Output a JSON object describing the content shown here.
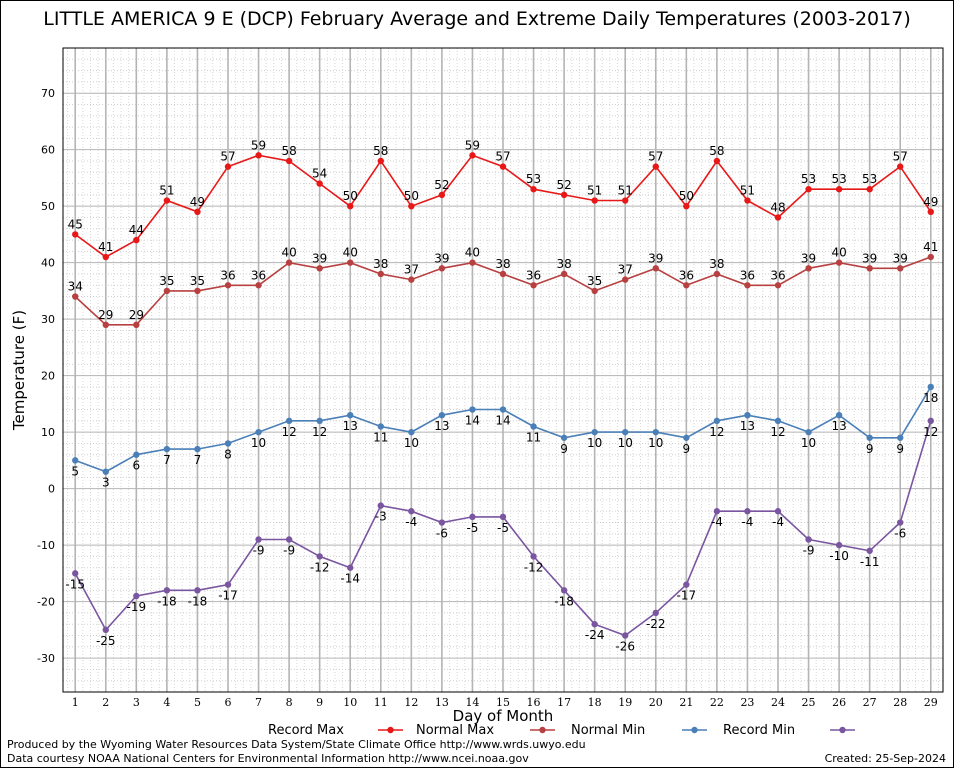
{
  "chart_data": {
    "type": "line",
    "title": "LITTLE AMERICA 9 E (DCP) February Average and Extreme Daily Temperatures (2003-2017)",
    "xlabel": "Day of Month",
    "ylabel": "Temperature (F)",
    "x": [
      1,
      2,
      3,
      4,
      5,
      6,
      7,
      8,
      9,
      10,
      11,
      12,
      13,
      14,
      15,
      16,
      17,
      18,
      19,
      20,
      21,
      22,
      23,
      24,
      25,
      26,
      27,
      28,
      29
    ],
    "xlim": [
      0.6,
      29.4
    ],
    "ylim": [
      -36,
      78
    ],
    "yticks": [
      -30,
      -20,
      -10,
      0,
      10,
      20,
      30,
      40,
      50,
      60,
      70
    ],
    "grid": true,
    "legend_position": "bottom",
    "series": [
      {
        "name": "Record Max",
        "color": "#e81818",
        "values": [
          45,
          41,
          44,
          51,
          49,
          57,
          59,
          58,
          54,
          50,
          58,
          50,
          52,
          59,
          57,
          53,
          52,
          51,
          51,
          57,
          50,
          58,
          51,
          48,
          53,
          53,
          53,
          57,
          49
        ]
      },
      {
        "name": "Normal Max",
        "color": "#b84040",
        "values": [
          34,
          29,
          29,
          35,
          35,
          36,
          36,
          40,
          39,
          40,
          38,
          37,
          39,
          40,
          38,
          36,
          38,
          35,
          37,
          39,
          36,
          38,
          36,
          36,
          39,
          40,
          39,
          39,
          41
        ]
      },
      {
        "name": "Normal Min",
        "color": "#4a7fb8",
        "values": [
          5,
          3,
          6,
          7,
          7,
          8,
          10,
          12,
          12,
          13,
          11,
          10,
          13,
          14,
          14,
          11,
          9,
          10,
          10,
          10,
          9,
          12,
          13,
          12,
          10,
          13,
          9,
          9,
          18
        ]
      },
      {
        "name": "Record Min",
        "color": "#7a55a0",
        "values": [
          -15,
          -25,
          -19,
          -18,
          -18,
          -17,
          -9,
          -9,
          -12,
          -14,
          -3,
          -4,
          -6,
          -5,
          -5,
          -12,
          -18,
          -24,
          -26,
          -22,
          -17,
          -4,
          -4,
          -4,
          -9,
          -10,
          -11,
          -6,
          12
        ]
      }
    ]
  },
  "footer": {
    "credit_line_1": "Produced by the Wyoming Water Resources Data System/State Climate Office http://www.wrds.uwyo.edu",
    "credit_line_2": "Data courtesy NOAA National Centers for Environmental Information http://www.ncei.noaa.gov",
    "created": "Created:  25-Sep-2024"
  }
}
